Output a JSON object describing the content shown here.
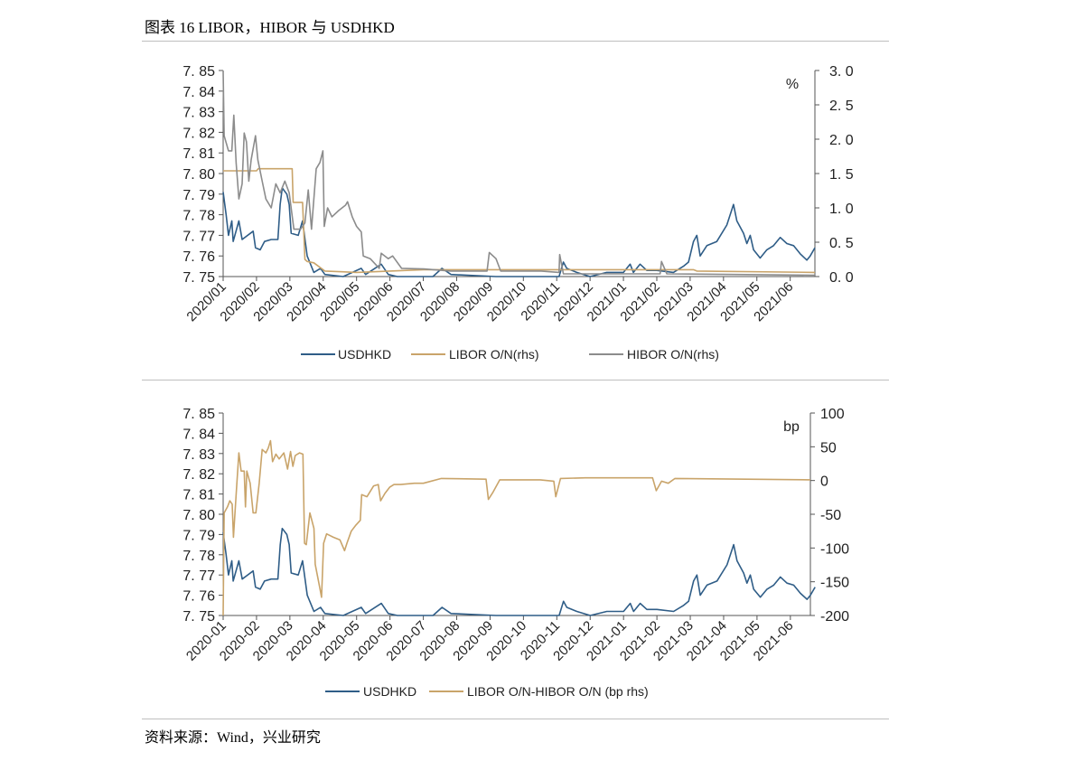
{
  "figure_title": "图表 16   LIBOR，HIBOR 与 USDHKD",
  "source": "资料来源：Wind，兴业研究",
  "colors": {
    "usdhkd": "#2f5d87",
    "libor": "#c9a46a",
    "hibor": "#8c8c8c",
    "axis": "#555555"
  },
  "chart_data": [
    {
      "type": "line",
      "title": "",
      "x_unit": "months since 2020/01",
      "xlim": [
        0,
        17.74
      ],
      "x_tick_labels": [
        "2020/01",
        "2020/02",
        "2020/03",
        "2020/04",
        "2020/05",
        "2020/06",
        "2020/07",
        "2020/08",
        "2020/09",
        "2020/10",
        "2020/11",
        "2020/12",
        "2021/01",
        "2021/02",
        "2021/03",
        "2021/04",
        "2021/05",
        "2021/06"
      ],
      "y_left": {
        "lim": [
          7.75,
          7.85
        ],
        "ticks": [
          "7. 75",
          "7. 76",
          "7. 77",
          "7. 78",
          "7. 79",
          "7. 80",
          "7. 81",
          "7. 82",
          "7. 83",
          "7. 84",
          "7. 85"
        ]
      },
      "y_right": {
        "lim": [
          0,
          3.0
        ],
        "ticks": [
          "0. 0",
          "0. 5",
          "1. 0",
          "1. 5",
          "2. 0",
          "2. 5",
          "3. 0"
        ],
        "unit_label": "%"
      },
      "legend_position": "bottom",
      "series": [
        {
          "name": "USDHKD",
          "axis": "left",
          "color_key": "usdhkd",
          "points": [
            [
              0,
              7.791
            ],
            [
              0.09,
              7.78
            ],
            [
              0.16,
              7.77
            ],
            [
              0.26,
              7.777
            ],
            [
              0.3,
              7.767
            ],
            [
              0.47,
              7.777
            ],
            [
              0.57,
              7.768
            ],
            [
              0.9,
              7.772
            ],
            [
              0.97,
              7.764
            ],
            [
              1.11,
              7.763
            ],
            [
              1.24,
              7.767
            ],
            [
              1.44,
              7.768
            ],
            [
              1.64,
              7.768
            ],
            [
              1.71,
              7.785
            ],
            [
              1.77,
              7.793
            ],
            [
              1.91,
              7.79
            ],
            [
              1.98,
              7.785
            ],
            [
              2.04,
              7.771
            ],
            [
              2.25,
              7.77
            ],
            [
              2.38,
              7.777
            ],
            [
              2.52,
              7.76
            ],
            [
              2.72,
              7.752
            ],
            [
              2.92,
              7.754
            ],
            [
              3.05,
              7.751
            ],
            [
              3.6,
              7.75
            ],
            [
              4.14,
              7.754
            ],
            [
              4.27,
              7.751
            ],
            [
              4.74,
              7.756
            ],
            [
              4.95,
              7.751
            ],
            [
              5.22,
              7.75
            ],
            [
              6.29,
              7.75
            ],
            [
              6.56,
              7.754
            ],
            [
              6.83,
              7.751
            ],
            [
              8.18,
              7.75
            ],
            [
              10.07,
              7.75
            ],
            [
              10.2,
              7.757
            ],
            [
              10.3,
              7.754
            ],
            [
              10.6,
              7.752
            ],
            [
              11.0,
              7.75
            ],
            [
              11.5,
              7.752
            ],
            [
              12.0,
              7.752
            ],
            [
              12.2,
              7.756
            ],
            [
              12.3,
              7.752
            ],
            [
              12.5,
              7.756
            ],
            [
              12.7,
              7.753
            ],
            [
              13.0,
              7.753
            ],
            [
              13.5,
              7.752
            ],
            [
              13.8,
              7.755
            ],
            [
              13.95,
              7.757
            ],
            [
              14.1,
              7.767
            ],
            [
              14.2,
              7.77
            ],
            [
              14.3,
              7.76
            ],
            [
              14.5,
              7.765
            ],
            [
              14.8,
              7.767
            ],
            [
              15.1,
              7.775
            ],
            [
              15.3,
              7.785
            ],
            [
              15.4,
              7.777
            ],
            [
              15.6,
              7.771
            ],
            [
              15.7,
              7.766
            ],
            [
              15.8,
              7.77
            ],
            [
              15.9,
              7.763
            ],
            [
              16.1,
              7.759
            ],
            [
              16.3,
              7.763
            ],
            [
              16.5,
              7.765
            ],
            [
              16.7,
              7.769
            ],
            [
              16.9,
              7.766
            ],
            [
              17.1,
              7.765
            ],
            [
              17.3,
              7.761
            ],
            [
              17.5,
              7.758
            ],
            [
              17.6,
              7.76
            ],
            [
              17.74,
              7.764
            ]
          ]
        },
        {
          "name": "LIBOR O/N(rhs)",
          "axis": "right",
          "color_key": "libor",
          "points": [
            [
              0,
              1.54
            ],
            [
              1.0,
              1.54
            ],
            [
              1.05,
              1.57
            ],
            [
              2.07,
              1.57
            ],
            [
              2.1,
              1.08
            ],
            [
              2.38,
              1.08
            ],
            [
              2.45,
              0.25
            ],
            [
              2.52,
              0.22
            ],
            [
              2.72,
              0.2
            ],
            [
              3.05,
              0.08
            ],
            [
              4.0,
              0.06
            ],
            [
              6.0,
              0.1
            ],
            [
              14.1,
              0.1
            ],
            [
              14.2,
              0.08
            ],
            [
              17.74,
              0.06
            ]
          ]
        },
        {
          "name": "HIBOR O/N(rhs)",
          "axis": "right",
          "color_key": "hibor",
          "points": [
            [
              0,
              3.0
            ],
            [
              0.03,
              2.05
            ],
            [
              0.16,
              1.83
            ],
            [
              0.26,
              1.83
            ],
            [
              0.32,
              2.35
            ],
            [
              0.39,
              1.65
            ],
            [
              0.47,
              1.13
            ],
            [
              0.57,
              1.35
            ],
            [
              0.63,
              2.09
            ],
            [
              0.7,
              1.96
            ],
            [
              0.77,
              1.39
            ],
            [
              0.84,
              1.7
            ],
            [
              0.97,
              2.05
            ],
            [
              1.04,
              1.7
            ],
            [
              1.17,
              1.39
            ],
            [
              1.28,
              1.13
            ],
            [
              1.44,
              1.0
            ],
            [
              1.58,
              1.35
            ],
            [
              1.71,
              1.22
            ],
            [
              1.85,
              1.39
            ],
            [
              1.98,
              1.22
            ],
            [
              2.12,
              0.69
            ],
            [
              2.32,
              0.69
            ],
            [
              2.45,
              0.78
            ],
            [
              2.55,
              1.26
            ],
            [
              2.65,
              0.69
            ],
            [
              2.79,
              1.57
            ],
            [
              2.9,
              1.66
            ],
            [
              2.99,
              1.83
            ],
            [
              3.03,
              0.73
            ],
            [
              3.13,
              1.0
            ],
            [
              3.26,
              0.87
            ],
            [
              3.46,
              0.96
            ],
            [
              3.67,
              1.04
            ],
            [
              3.73,
              1.09
            ],
            [
              3.87,
              0.87
            ],
            [
              4.0,
              0.73
            ],
            [
              4.14,
              0.65
            ],
            [
              4.2,
              0.3
            ],
            [
              4.41,
              0.26
            ],
            [
              4.68,
              0.12
            ],
            [
              4.74,
              0.34
            ],
            [
              4.95,
              0.26
            ],
            [
              5.08,
              0.3
            ],
            [
              5.35,
              0.12
            ],
            [
              6.02,
              0.11
            ],
            [
              6.83,
              0.08
            ],
            [
              7.91,
              0.08
            ],
            [
              7.98,
              0.35
            ],
            [
              8.18,
              0.26
            ],
            [
              8.32,
              0.08
            ],
            [
              9.53,
              0.08
            ],
            [
              10.07,
              0.06
            ],
            [
              10.09,
              0.32
            ],
            [
              10.2,
              0.04
            ],
            [
              13.1,
              0.04
            ],
            [
              13.14,
              0.22
            ],
            [
              13.3,
              0.04
            ],
            [
              17.74,
              0.02
            ]
          ]
        }
      ]
    },
    {
      "type": "line",
      "title": "",
      "x_unit": "months since 2020-01",
      "xlim": [
        0,
        17.6
      ],
      "x_tick_labels": [
        "2020-01",
        "2020-02",
        "2020-03",
        "2020-04",
        "2020-05",
        "2020-06",
        "2020-07",
        "2020-08",
        "2020-09",
        "2020-10",
        "2020-11",
        "2020-12",
        "2021-01",
        "2021-02",
        "2021-03",
        "2021-04",
        "2021-05",
        "2021-06"
      ],
      "y_left": {
        "lim": [
          7.75,
          7.85
        ],
        "ticks": [
          "7. 75",
          "7. 76",
          "7. 77",
          "7. 78",
          "7. 79",
          "7. 80",
          "7. 81",
          "7. 82",
          "7. 83",
          "7. 84",
          "7. 85"
        ]
      },
      "y_right": {
        "lim": [
          -200,
          100
        ],
        "ticks": [
          "-200",
          "-150",
          "-100",
          "-50",
          "0",
          "50",
          "100"
        ],
        "unit_label": "bp"
      },
      "legend_position": "bottom",
      "series": [
        {
          "name": "USDHKD",
          "axis": "left",
          "color_key": "usdhkd",
          "same_as_series_of_chart": 0
        },
        {
          "name": "LIBOR O/N-HIBOR O/N (bp rhs)",
          "axis": "right",
          "color_key": "libor",
          "points": [
            [
              0,
              -200
            ],
            [
              0.03,
              -48
            ],
            [
              0.13,
              -39
            ],
            [
              0.2,
              -30
            ],
            [
              0.27,
              -35
            ],
            [
              0.31,
              -84
            ],
            [
              0.4,
              -12
            ],
            [
              0.47,
              41
            ],
            [
              0.54,
              14
            ],
            [
              0.63,
              14
            ],
            [
              0.67,
              -39
            ],
            [
              0.71,
              14
            ],
            [
              0.81,
              -4
            ],
            [
              0.9,
              -48
            ],
            [
              0.98,
              -48
            ],
            [
              1.08,
              -4
            ],
            [
              1.17,
              46
            ],
            [
              1.28,
              41
            ],
            [
              1.35,
              48
            ],
            [
              1.42,
              59
            ],
            [
              1.48,
              28
            ],
            [
              1.58,
              39
            ],
            [
              1.68,
              32
            ],
            [
              1.82,
              41
            ],
            [
              1.93,
              17
            ],
            [
              2.02,
              43
            ],
            [
              2.09,
              21
            ],
            [
              2.16,
              37
            ],
            [
              2.29,
              41
            ],
            [
              2.39,
              39
            ],
            [
              2.44,
              -93
            ],
            [
              2.49,
              -95
            ],
            [
              2.6,
              -48
            ],
            [
              2.72,
              -71
            ],
            [
              2.76,
              -124
            ],
            [
              2.83,
              -142
            ],
            [
              2.9,
              -160
            ],
            [
              2.95,
              -173
            ],
            [
              3.01,
              -93
            ],
            [
              3.1,
              -79
            ],
            [
              3.3,
              -84
            ],
            [
              3.5,
              -88
            ],
            [
              3.64,
              -104
            ],
            [
              3.71,
              -93
            ],
            [
              3.84,
              -75
            ],
            [
              3.98,
              -66
            ],
            [
              4.11,
              -59
            ],
            [
              4.15,
              -21
            ],
            [
              4.31,
              -24
            ],
            [
              4.51,
              -8
            ],
            [
              4.65,
              -6
            ],
            [
              4.72,
              -30
            ],
            [
              4.85,
              -19
            ],
            [
              4.99,
              -10
            ],
            [
              5.12,
              -6
            ],
            [
              5.32,
              -6
            ],
            [
              5.73,
              -4
            ],
            [
              6.0,
              -4
            ],
            [
              6.54,
              3
            ],
            [
              7.88,
              2
            ],
            [
              7.95,
              -28
            ],
            [
              8.09,
              -17
            ],
            [
              8.29,
              1
            ],
            [
              9.5,
              1
            ],
            [
              9.91,
              -1
            ],
            [
              9.97,
              -24
            ],
            [
              10.11,
              3
            ],
            [
              10.85,
              4
            ],
            [
              12.87,
              4
            ],
            [
              12.98,
              -15
            ],
            [
              13.14,
              -1
            ],
            [
              13.34,
              -4
            ],
            [
              13.54,
              3
            ],
            [
              17.6,
              1
            ]
          ]
        }
      ]
    }
  ]
}
